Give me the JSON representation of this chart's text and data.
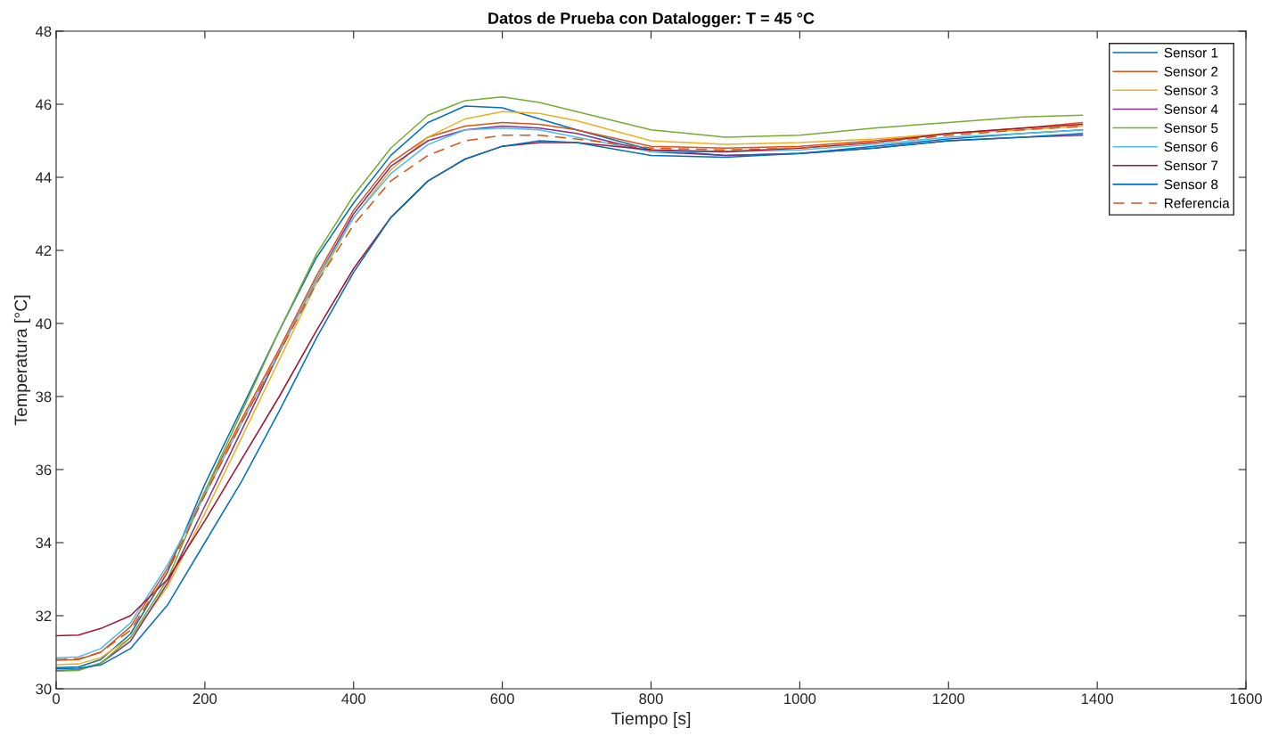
{
  "chart_data": {
    "type": "line",
    "title": "Datos de Prueba con Datalogger: T = 45 °C",
    "xlabel": "Tiempo [s]",
    "ylabel": "Temperatura [°C]",
    "x": [
      0,
      30,
      60,
      100,
      150,
      200,
      250,
      300,
      350,
      400,
      450,
      500,
      550,
      600,
      650,
      700,
      800,
      900,
      1000,
      1100,
      1200,
      1300,
      1380
    ],
    "series": [
      {
        "name": "Sensor 1",
        "color": "#0072bd",
        "values": [
          30.58,
          30.6,
          30.8,
          31.5,
          33.2,
          35.6,
          37.7,
          39.8,
          41.8,
          43.3,
          44.6,
          45.5,
          45.95,
          45.9,
          45.6,
          45.3,
          44.75,
          44.6,
          44.65,
          44.85,
          45.05,
          45.2,
          45.3
        ]
      },
      {
        "name": "Sensor 2",
        "color": "#d95319",
        "values": [
          30.78,
          30.8,
          31.0,
          31.7,
          33.3,
          35.4,
          37.4,
          39.3,
          41.3,
          43.1,
          44.4,
          45.1,
          45.4,
          45.5,
          45.45,
          45.3,
          44.85,
          44.8,
          44.85,
          45.0,
          45.2,
          45.35,
          45.5
        ]
      },
      {
        "name": "Sensor 3",
        "color": "#edb120",
        "values": [
          30.66,
          30.68,
          30.85,
          31.4,
          32.8,
          34.8,
          36.9,
          39.0,
          41.1,
          42.9,
          44.2,
          45.1,
          45.6,
          45.8,
          45.75,
          45.55,
          45.0,
          44.9,
          44.95,
          45.05,
          45.2,
          45.3,
          45.4
        ]
      },
      {
        "name": "Sensor 4",
        "color": "#7e2f8e",
        "values": [
          30.5,
          30.52,
          30.7,
          31.3,
          32.9,
          35.0,
          37.1,
          39.2,
          41.2,
          43.0,
          44.3,
          45.0,
          45.3,
          45.4,
          45.35,
          45.2,
          44.7,
          44.6,
          44.65,
          44.8,
          45.0,
          45.1,
          45.15
        ]
      },
      {
        "name": "Sensor 5",
        "color": "#77ac30",
        "values": [
          30.48,
          30.5,
          30.7,
          31.4,
          33.0,
          35.4,
          37.6,
          39.8,
          41.9,
          43.5,
          44.8,
          45.7,
          46.1,
          46.2,
          46.05,
          45.8,
          45.3,
          45.1,
          45.15,
          45.35,
          45.5,
          45.65,
          45.7
        ]
      },
      {
        "name": "Sensor 6",
        "color": "#4dbeee",
        "values": [
          30.85,
          30.87,
          31.1,
          31.8,
          33.4,
          35.3,
          37.3,
          39.2,
          41.2,
          42.9,
          44.1,
          44.9,
          45.3,
          45.35,
          45.3,
          45.1,
          44.7,
          44.7,
          44.75,
          44.9,
          45.1,
          45.2,
          45.3
        ]
      },
      {
        "name": "Sensor 7",
        "color": "#a2142f",
        "values": [
          31.45,
          31.47,
          31.65,
          32.0,
          33.0,
          34.6,
          36.3,
          38.0,
          39.8,
          41.5,
          42.9,
          43.9,
          44.5,
          44.85,
          44.95,
          44.95,
          44.75,
          44.7,
          44.8,
          44.95,
          45.2,
          45.35,
          45.45
        ]
      },
      {
        "name": "Sensor 8",
        "color": "#0072bd",
        "values": [
          30.55,
          30.56,
          30.65,
          31.1,
          32.3,
          34.0,
          35.7,
          37.6,
          39.6,
          41.4,
          42.9,
          43.9,
          44.5,
          44.85,
          45.0,
          44.95,
          44.6,
          44.55,
          44.65,
          44.8,
          45.0,
          45.1,
          45.2
        ]
      },
      {
        "name": "Referencia",
        "color": "#d95319",
        "line_style": "dashed",
        "values": [
          30.8,
          30.82,
          31.0,
          31.6,
          33.2,
          35.3,
          37.3,
          39.2,
          41.1,
          42.7,
          43.9,
          44.6,
          45.0,
          45.15,
          45.15,
          45.05,
          44.8,
          44.75,
          44.8,
          44.95,
          45.15,
          45.3,
          45.4
        ]
      }
    ],
    "xlim": [
      0,
      1600
    ],
    "xticks": [
      0,
      200,
      400,
      600,
      800,
      1000,
      1200,
      1400,
      1600
    ],
    "ylim": [
      30,
      48
    ],
    "yticks": [
      30,
      32,
      34,
      36,
      38,
      40,
      42,
      44,
      46,
      48
    ],
    "grid": false,
    "legend": "top right",
    "marker": "none",
    "line_style": "solid"
  }
}
